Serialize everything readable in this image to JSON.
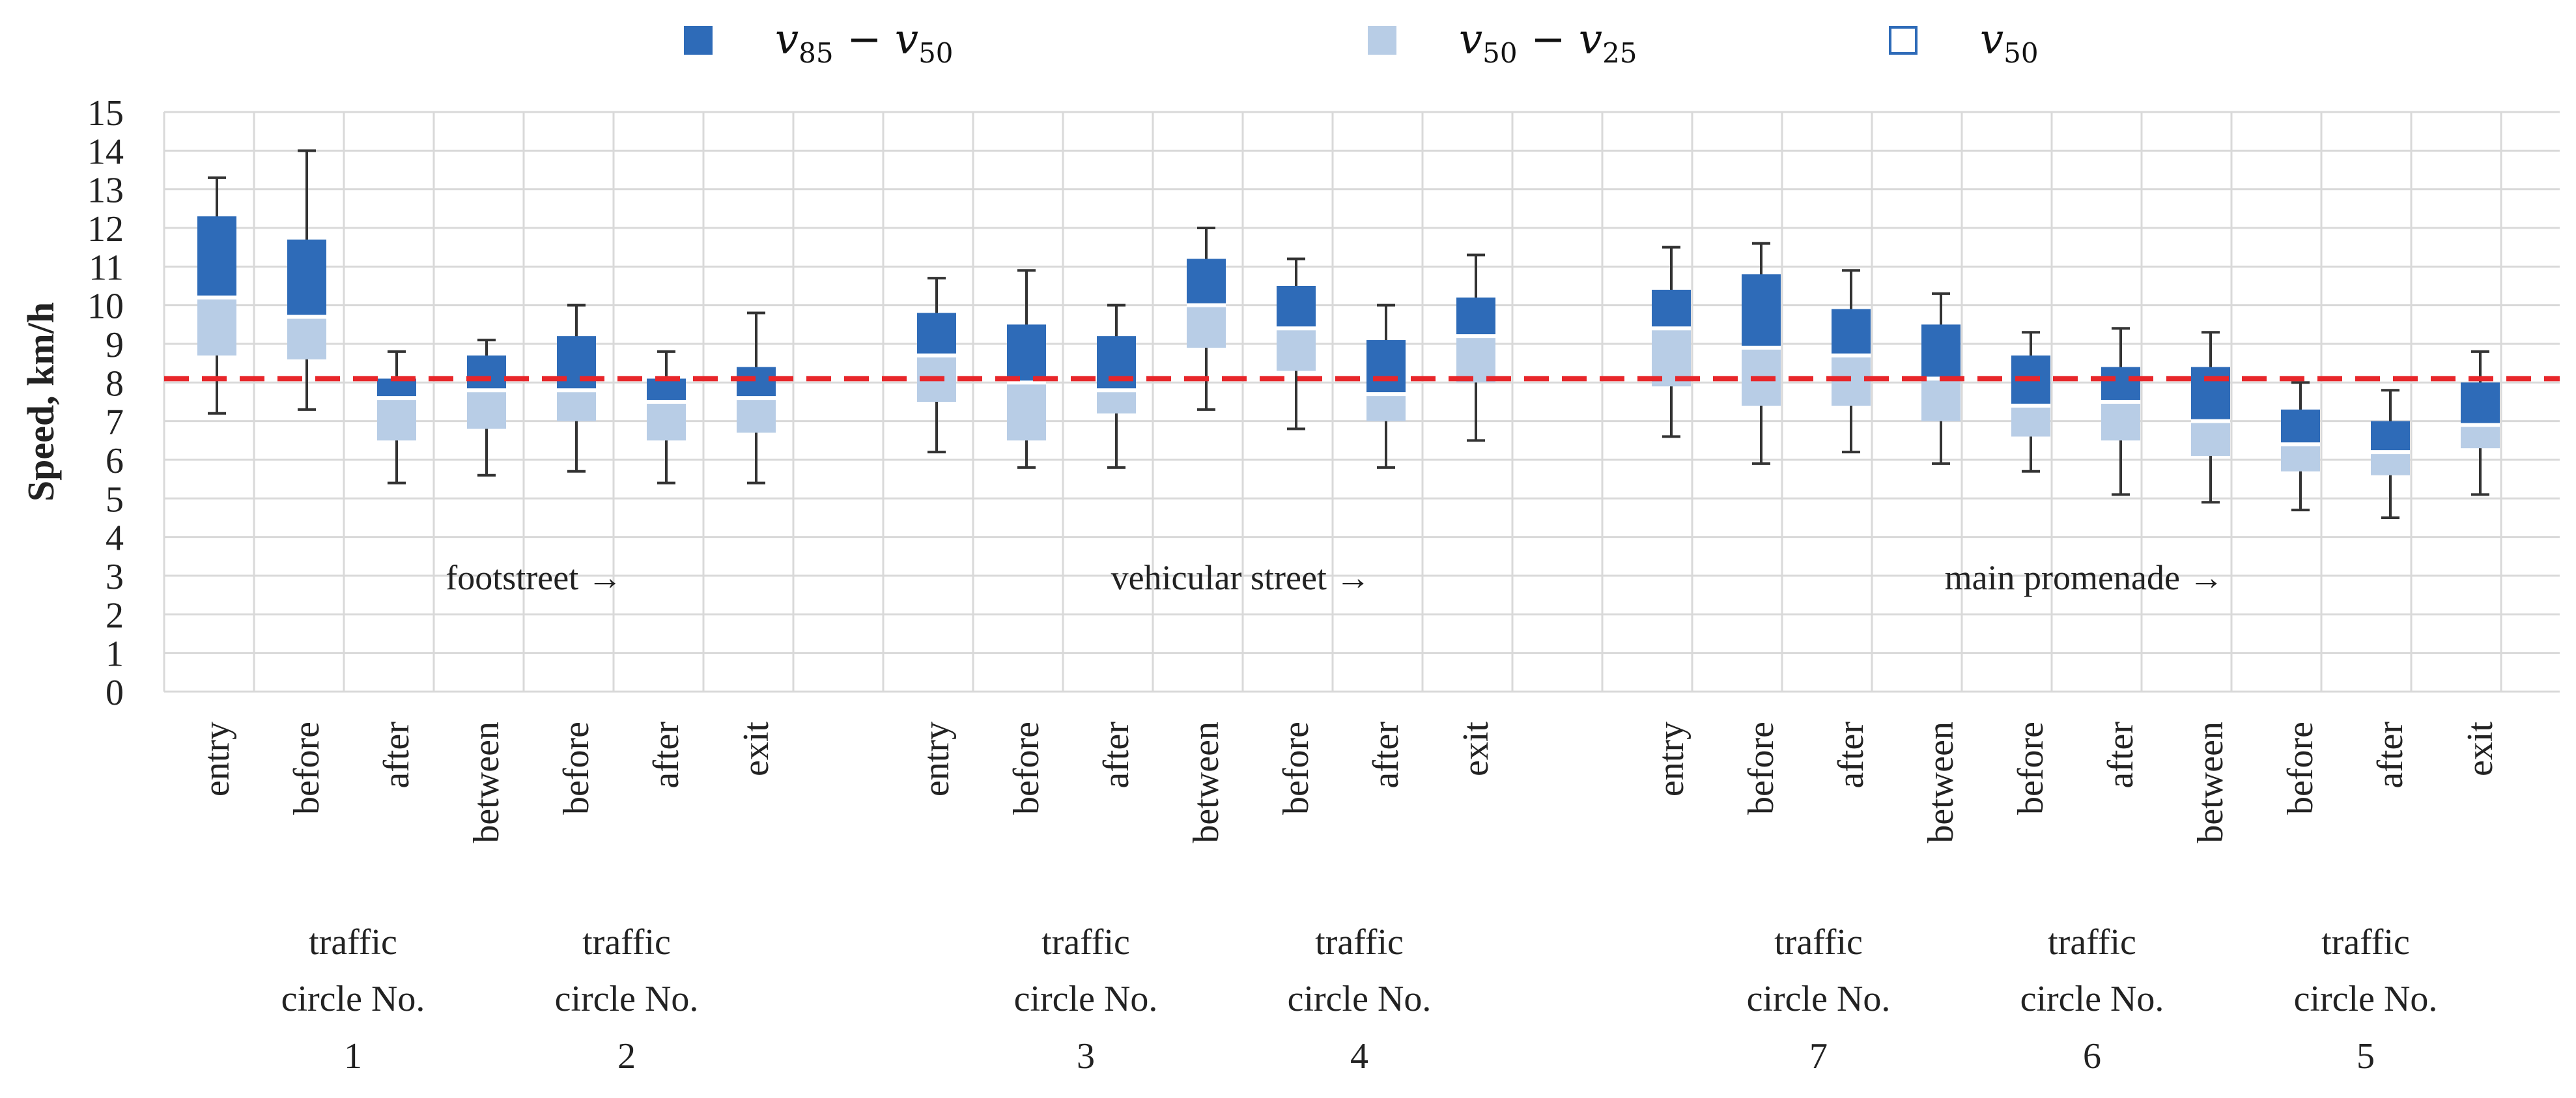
{
  "chart_data": {
    "type": "box",
    "ylabel": "Speed, km/h",
    "ylim": [
      0,
      15
    ],
    "yticks": [
      "0",
      "1",
      "2",
      "3",
      "4",
      "5",
      "6",
      "7",
      "8",
      "9",
      "10",
      "11",
      "12",
      "13",
      "14",
      "15"
    ],
    "reference_line": {
      "value": 8.1,
      "style": "dashed",
      "color": "#e8262a"
    },
    "legend": [
      {
        "symbol": "v",
        "sub": "85",
        "op": "−",
        "symbol2": "v",
        "sub2": "50",
        "color": "#2e6bb8",
        "type": "filled"
      },
      {
        "symbol": "v",
        "sub": "50",
        "op": "−",
        "symbol2": "v",
        "sub2": "25",
        "color": "#b8cde6",
        "type": "filled"
      },
      {
        "symbol": "v",
        "sub": "50",
        "op": "",
        "symbol2": "",
        "sub2": "",
        "color": "#2e6bb8",
        "type": "outline"
      }
    ],
    "section_labels": [
      {
        "text": "footstreet →"
      },
      {
        "text": "vehicular street →"
      },
      {
        "text": "main promenade →"
      }
    ],
    "circles": [
      {
        "line1": "traffic",
        "line2": "circle No.",
        "number": "1"
      },
      {
        "line1": "traffic",
        "line2": "circle No.",
        "number": "2"
      },
      {
        "line1": "traffic",
        "line2": "circle No.",
        "number": "3"
      },
      {
        "line1": "traffic",
        "line2": "circle No.",
        "number": "4"
      },
      {
        "line1": "traffic",
        "line2": "circle No.",
        "number": "7"
      },
      {
        "line1": "traffic",
        "line2": "circle No.",
        "number": "6"
      },
      {
        "line1": "traffic",
        "line2": "circle No.",
        "number": "5"
      }
    ],
    "series_fields": [
      "min",
      "p25",
      "p50",
      "p85",
      "max"
    ],
    "categories": [
      {
        "label": "entry",
        "min": 7.2,
        "p25": 8.7,
        "p50": 10.2,
        "p85": 12.3,
        "max": 13.3
      },
      {
        "label": "before",
        "min": 7.3,
        "p25": 8.6,
        "p50": 9.7,
        "p85": 11.7,
        "max": 14.0
      },
      {
        "label": "after",
        "min": 5.4,
        "p25": 6.5,
        "p50": 7.6,
        "p85": 8.1,
        "max": 8.8
      },
      {
        "label": "between",
        "min": 5.6,
        "p25": 6.8,
        "p50": 7.8,
        "p85": 8.7,
        "max": 9.1
      },
      {
        "label": "before",
        "min": 5.7,
        "p25": 7.0,
        "p50": 7.8,
        "p85": 9.2,
        "max": 10.0
      },
      {
        "label": "after",
        "min": 5.4,
        "p25": 6.5,
        "p50": 7.5,
        "p85": 8.1,
        "max": 8.8
      },
      {
        "label": "exit",
        "min": 5.4,
        "p25": 6.7,
        "p50": 7.6,
        "p85": 8.4,
        "max": 9.8
      },
      {
        "label": "entry",
        "min": 6.2,
        "p25": 7.5,
        "p50": 8.7,
        "p85": 9.8,
        "max": 10.7
      },
      {
        "label": "before",
        "min": 5.8,
        "p25": 6.5,
        "p50": 8.0,
        "p85": 9.5,
        "max": 10.9
      },
      {
        "label": "after",
        "min": 5.8,
        "p25": 7.2,
        "p50": 7.8,
        "p85": 9.2,
        "max": 10.0
      },
      {
        "label": "between",
        "min": 7.3,
        "p25": 8.9,
        "p50": 10.0,
        "p85": 11.2,
        "max": 12.0
      },
      {
        "label": "before",
        "min": 6.8,
        "p25": 8.3,
        "p50": 9.4,
        "p85": 10.5,
        "max": 11.2
      },
      {
        "label": "after",
        "min": 5.8,
        "p25": 7.0,
        "p50": 7.7,
        "p85": 9.1,
        "max": 10.0
      },
      {
        "label": "exit",
        "min": 6.5,
        "p25": 8.0,
        "p50": 9.2,
        "p85": 10.2,
        "max": 11.3
      },
      {
        "label": "entry",
        "min": 6.6,
        "p25": 7.9,
        "p50": 9.4,
        "p85": 10.4,
        "max": 11.5
      },
      {
        "label": "before",
        "min": 5.9,
        "p25": 7.4,
        "p50": 8.9,
        "p85": 10.8,
        "max": 11.6
      },
      {
        "label": "after",
        "min": 6.2,
        "p25": 7.4,
        "p50": 8.7,
        "p85": 9.9,
        "max": 10.9
      },
      {
        "label": "between",
        "min": 5.9,
        "p25": 7.0,
        "p50": 8.1,
        "p85": 9.5,
        "max": 10.3
      },
      {
        "label": "before",
        "min": 5.7,
        "p25": 6.6,
        "p50": 7.4,
        "p85": 8.7,
        "max": 9.3
      },
      {
        "label": "after",
        "min": 5.1,
        "p25": 6.5,
        "p50": 7.5,
        "p85": 8.4,
        "max": 9.4
      },
      {
        "label": "between",
        "min": 4.9,
        "p25": 6.1,
        "p50": 7.0,
        "p85": 8.4,
        "max": 9.3
      },
      {
        "label": "before",
        "min": 4.7,
        "p25": 5.7,
        "p50": 6.4,
        "p85": 7.3,
        "max": 8.0
      },
      {
        "label": "after",
        "min": 4.5,
        "p25": 5.6,
        "p50": 6.2,
        "p85": 7.0,
        "max": 7.8
      },
      {
        "label": "exit",
        "min": 5.1,
        "p25": 6.3,
        "p50": 6.9,
        "p85": 8.0,
        "max": 8.8
      }
    ]
  }
}
